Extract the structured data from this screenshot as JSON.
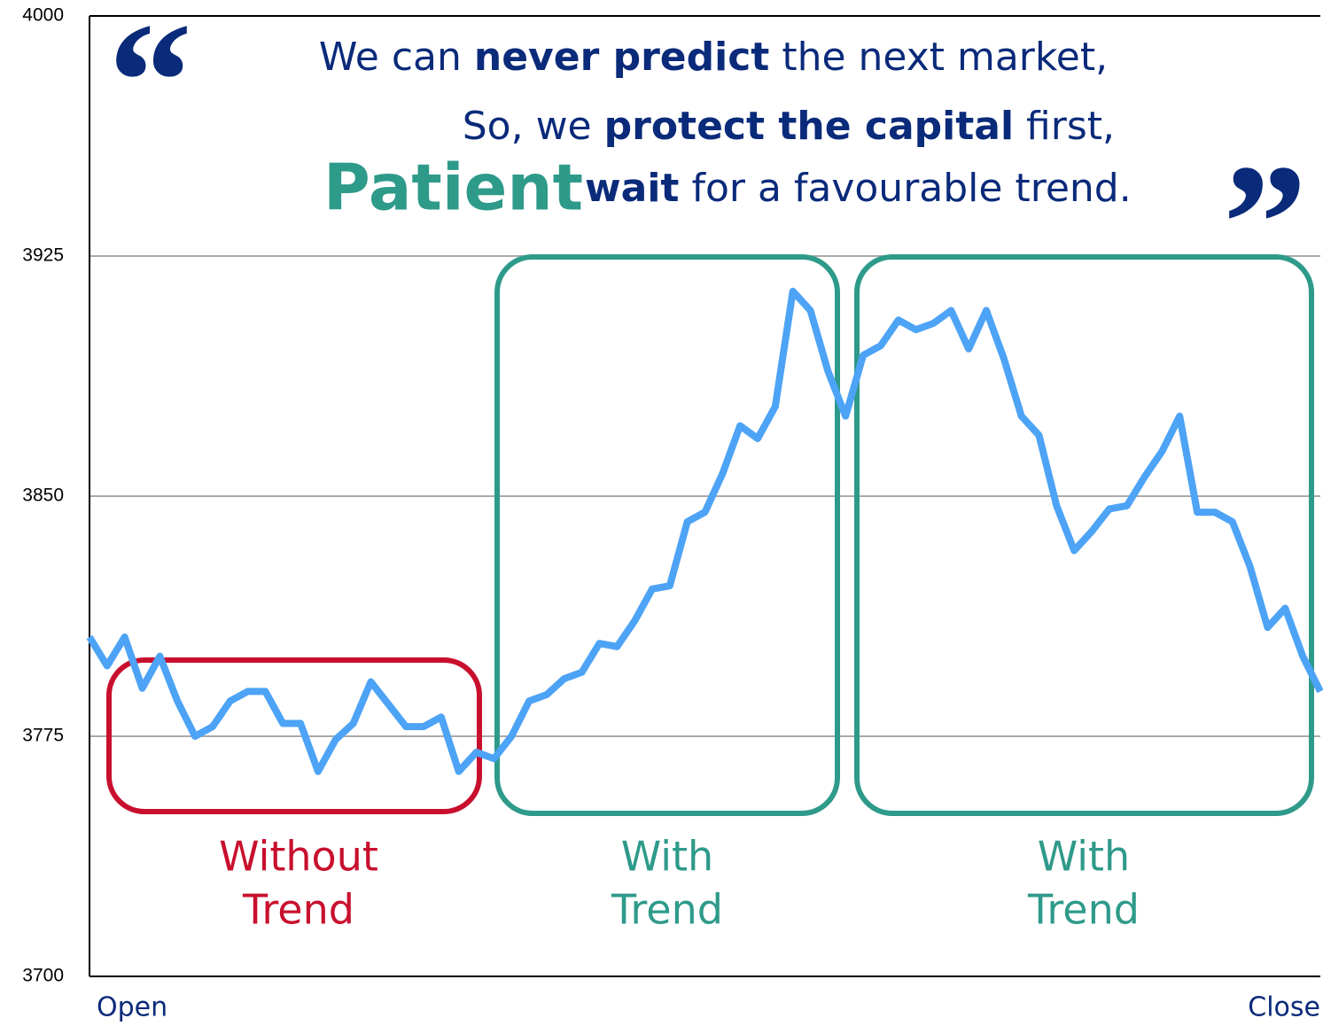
{
  "chart_data": {
    "type": "line",
    "quote_open": "“",
    "quote_close": "”",
    "quote_lines": [
      [
        "We can ",
        "never predict",
        " the next market,"
      ],
      [
        "So, we ",
        "protect the capital",
        " first,"
      ],
      [
        "Patient",
        " wait",
        " for a favourable trend."
      ]
    ],
    "regions": [
      {
        "label": [
          "Without",
          "Trend"
        ],
        "color": "#c8102e"
      },
      {
        "label": [
          "With",
          "Trend"
        ],
        "color": "#2e9a8a"
      },
      {
        "label": [
          "With",
          "Trend"
        ],
        "color": "#2e9a8a"
      }
    ],
    "categories": [
      "Open",
      null,
      null,
      null,
      null,
      null,
      null,
      null,
      null,
      null,
      null,
      null,
      null,
      null,
      null,
      null,
      null,
      null,
      null,
      null,
      null,
      null,
      null,
      null,
      null,
      null,
      null,
      null,
      null,
      null,
      null,
      null,
      null,
      null,
      null,
      null,
      null,
      null,
      null,
      null,
      null,
      null,
      null,
      null,
      null,
      null,
      null,
      null,
      null,
      null,
      null,
      null,
      null,
      null,
      null,
      null,
      null,
      null,
      null,
      null,
      null,
      null,
      null,
      null,
      null,
      null,
      null,
      null,
      null,
      null,
      "Close"
    ],
    "series": [
      {
        "color": "#4da3f5",
        "values": [
          3806,
          3797,
          3806,
          3790,
          3800,
          3786,
          3775,
          3778,
          3786,
          3789,
          3789,
          3779,
          3779,
          3764,
          3774,
          3779,
          3792,
          3785,
          3778,
          3778,
          3781,
          3764,
          3770,
          3768,
          3775,
          3786,
          3788,
          3793,
          3795,
          3804,
          3803,
          3811,
          3821,
          3822,
          3842,
          3845,
          3857,
          3872,
          3868,
          3878,
          3914,
          3908,
          3889,
          3875,
          3894,
          3897,
          3905,
          3902,
          3904,
          3908,
          3896,
          3908,
          3893,
          3875,
          3869,
          3847,
          3833,
          3839,
          3846,
          3847,
          3856,
          3864,
          3875,
          3845,
          3845,
          3842,
          3828,
          3809,
          3815,
          3800,
          3789
        ]
      }
    ],
    "ylim": [
      3700,
      4000
    ],
    "yticks": [
      3700,
      3775,
      3850,
      3925,
      4000
    ],
    "grid": true
  }
}
